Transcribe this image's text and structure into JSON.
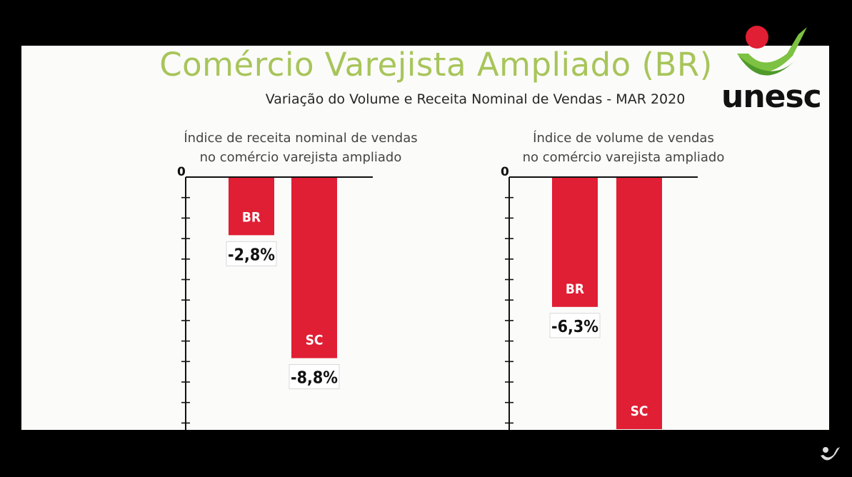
{
  "slide": {
    "title": "Comércio Varejista Ampliado (BR)",
    "subtitle": "Variação do Volume e Receita Nominal de Vendas - MAR 2020"
  },
  "logo": {
    "text": "unesc",
    "icon": "unesc-logo-icon"
  },
  "colors": {
    "bar": "#e01e34",
    "title": "#a8c55a",
    "background": "#fbfbfa",
    "frame": "#000000"
  },
  "chart_data": [
    {
      "type": "bar",
      "title_lines": [
        "Índice de receita nominal de vendas",
        "no comércio varejista ampliado"
      ],
      "categories": [
        "BR",
        "SC"
      ],
      "values": [
        -2.8,
        -8.8
      ],
      "value_labels": [
        "-2,8%",
        "-8,8%"
      ],
      "zero_label": "0",
      "ylim": [
        -12.4,
        0
      ],
      "grid": false
    },
    {
      "type": "bar",
      "title_lines": [
        "Índice de volume de vendas",
        "no comércio varejista ampliado"
      ],
      "categories": [
        "BR",
        "SC"
      ],
      "values": [
        -6.3,
        -12.4
      ],
      "value_labels": [
        "-6,3%",
        ""
      ],
      "zero_label": "0",
      "ylim": [
        -12.4,
        0
      ],
      "grid": false
    }
  ]
}
